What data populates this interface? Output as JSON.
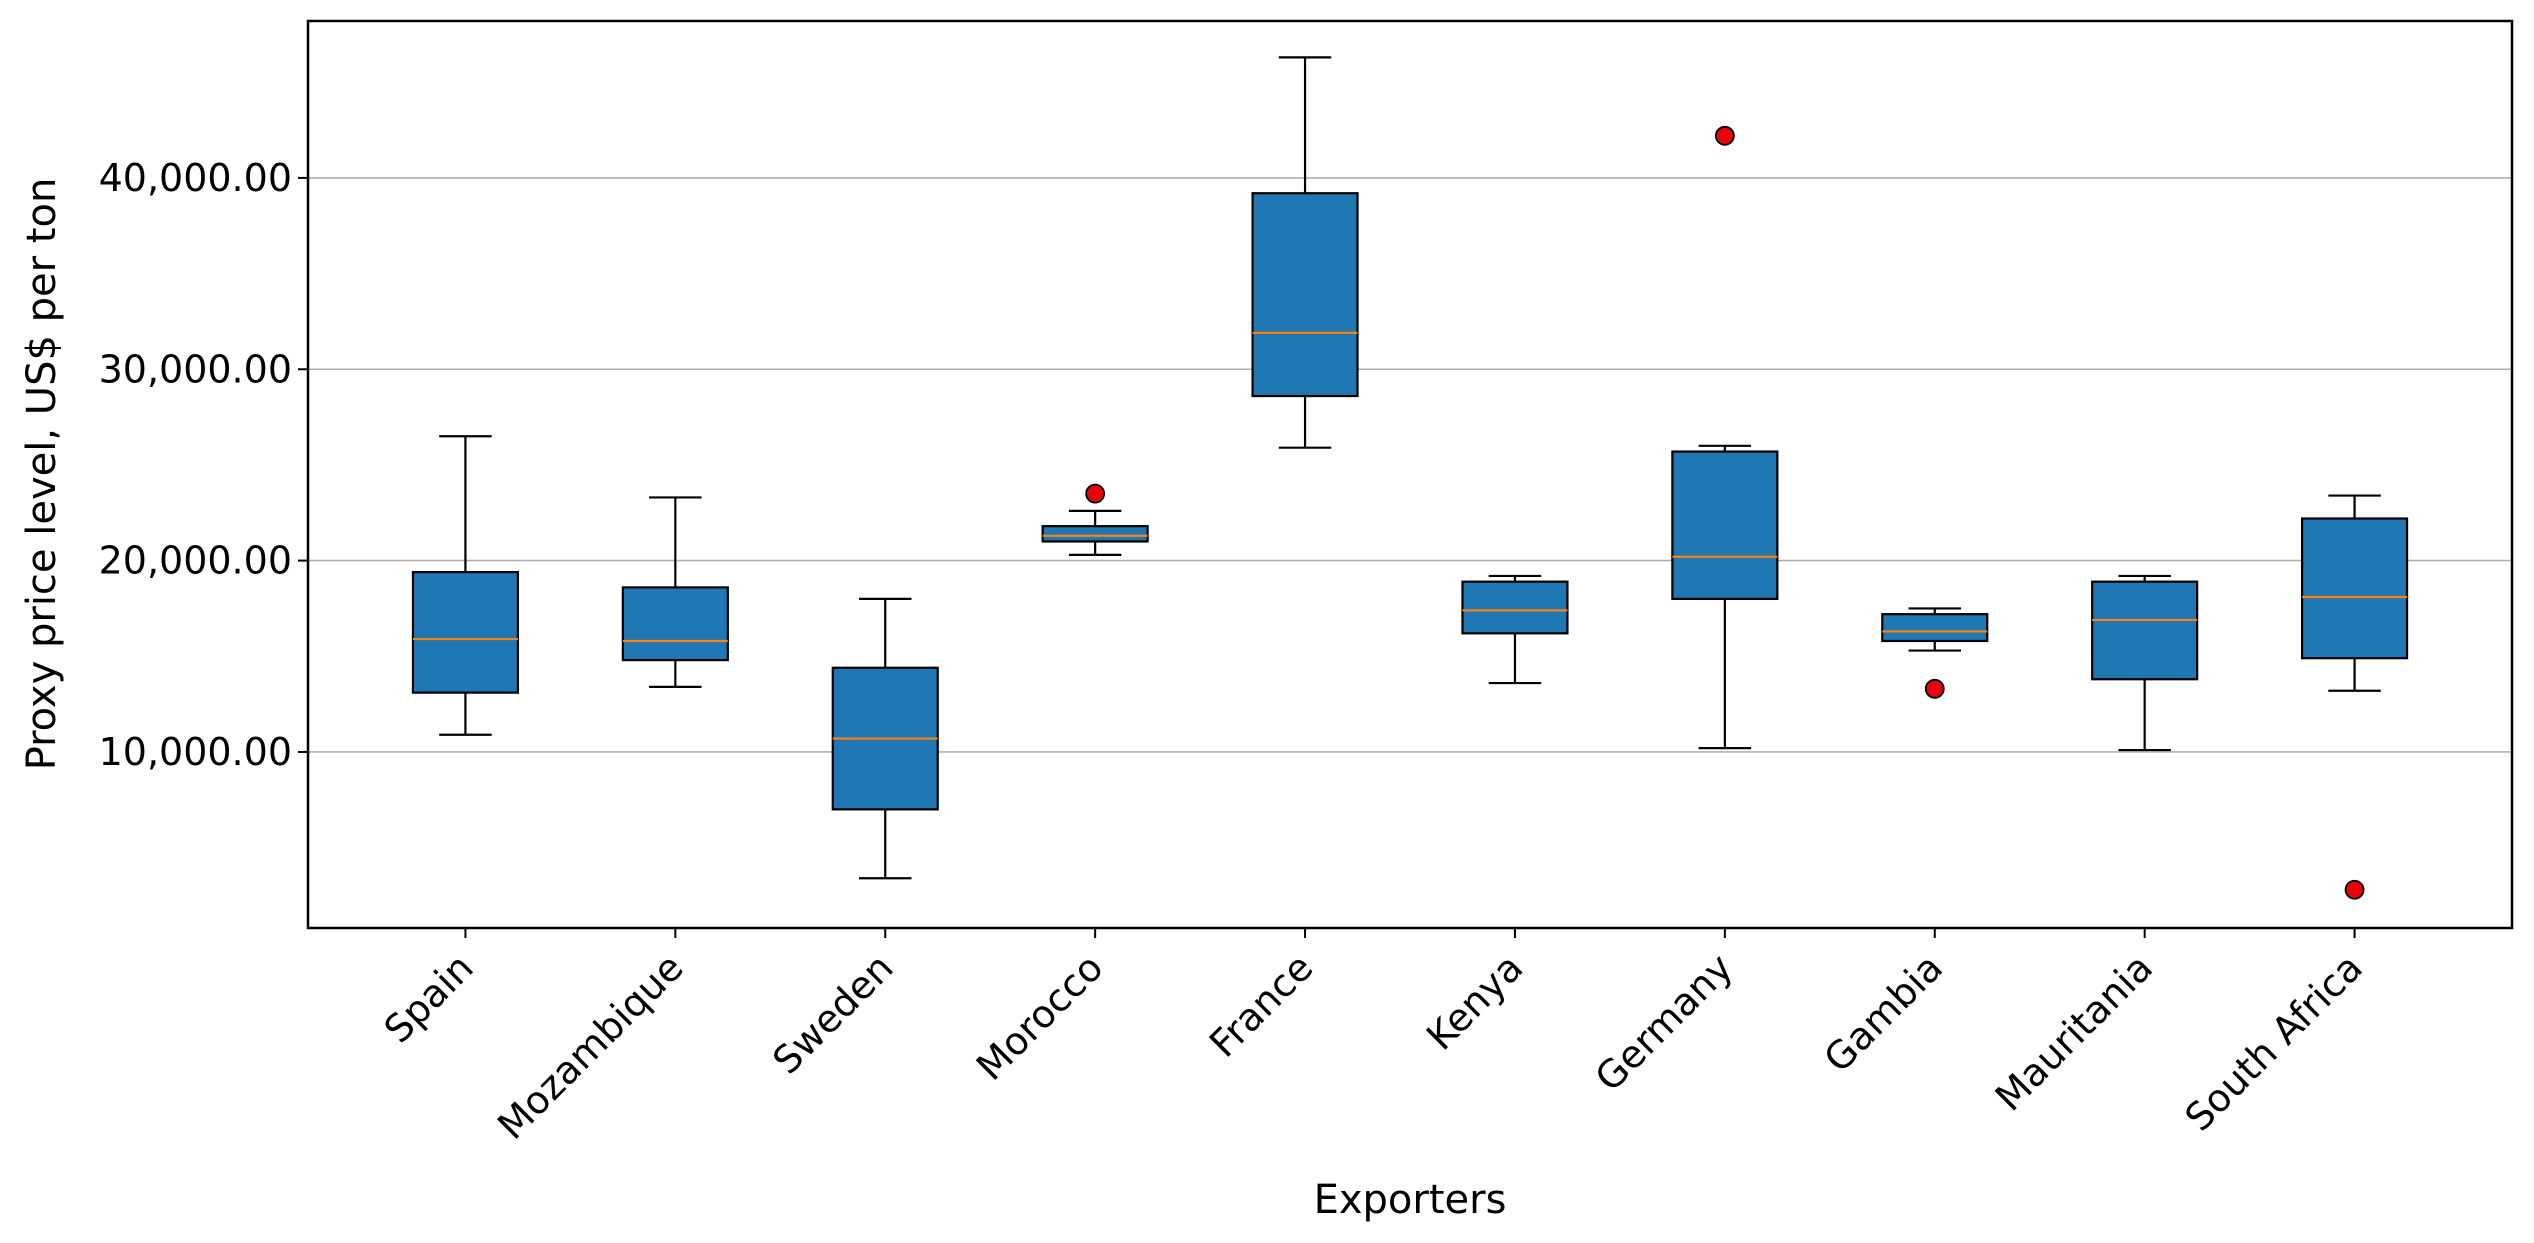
{
  "chart_data": {
    "type": "box",
    "xlabel": "Exporters",
    "ylabel": "Proxy price level, US$ per ton",
    "ylim": [
      800,
      48200
    ],
    "yticks": [
      10000,
      20000,
      30000,
      40000
    ],
    "ytick_labels": [
      "10,000.00",
      "20,000.00",
      "30,000.00",
      "40,000.00"
    ],
    "grid": "horizontal",
    "categories": [
      "Spain",
      "Mozambique",
      "Sweden",
      "Morocco",
      "France",
      "Kenya",
      "Germany",
      "Gambia",
      "Mauritania",
      "South Africa"
    ],
    "boxes": [
      {
        "whisker_low": 10900,
        "q1": 13100,
        "median": 15900,
        "q3": 19400,
        "whisker_high": 26500,
        "outliers": []
      },
      {
        "whisker_low": 13400,
        "q1": 14800,
        "median": 15800,
        "q3": 18600,
        "whisker_high": 23300,
        "outliers": []
      },
      {
        "whisker_low": 3400,
        "q1": 7000,
        "median": 10700,
        "q3": 14400,
        "whisker_high": 18000,
        "outliers": []
      },
      {
        "whisker_low": 20300,
        "q1": 21000,
        "median": 21300,
        "q3": 21800,
        "whisker_high": 22600,
        "outliers": [
          23500
        ]
      },
      {
        "whisker_low": 25900,
        "q1": 28600,
        "median": 31900,
        "q3": 39200,
        "whisker_high": 46300,
        "outliers": []
      },
      {
        "whisker_low": 13600,
        "q1": 16200,
        "median": 17400,
        "q3": 18900,
        "whisker_high": 19200,
        "outliers": []
      },
      {
        "whisker_low": 10200,
        "q1": 18000,
        "median": 20200,
        "q3": 25700,
        "whisker_high": 26000,
        "outliers": [
          42200
        ]
      },
      {
        "whisker_low": 15300,
        "q1": 15800,
        "median": 16300,
        "q3": 17200,
        "whisker_high": 17500,
        "outliers": [
          13300
        ]
      },
      {
        "whisker_low": 10100,
        "q1": 13800,
        "median": 16900,
        "q3": 18900,
        "whisker_high": 19200,
        "outliers": []
      },
      {
        "whisker_low": 13200,
        "q1": 14900,
        "median": 18100,
        "q3": 22200,
        "whisker_high": 23400,
        "outliers": [
          2800
        ]
      }
    ],
    "colors": {
      "box_fill": "#1f77b4",
      "median": "#ff7f0e",
      "outlier": "#e8000b",
      "grid": "#b0b0b0"
    }
  }
}
